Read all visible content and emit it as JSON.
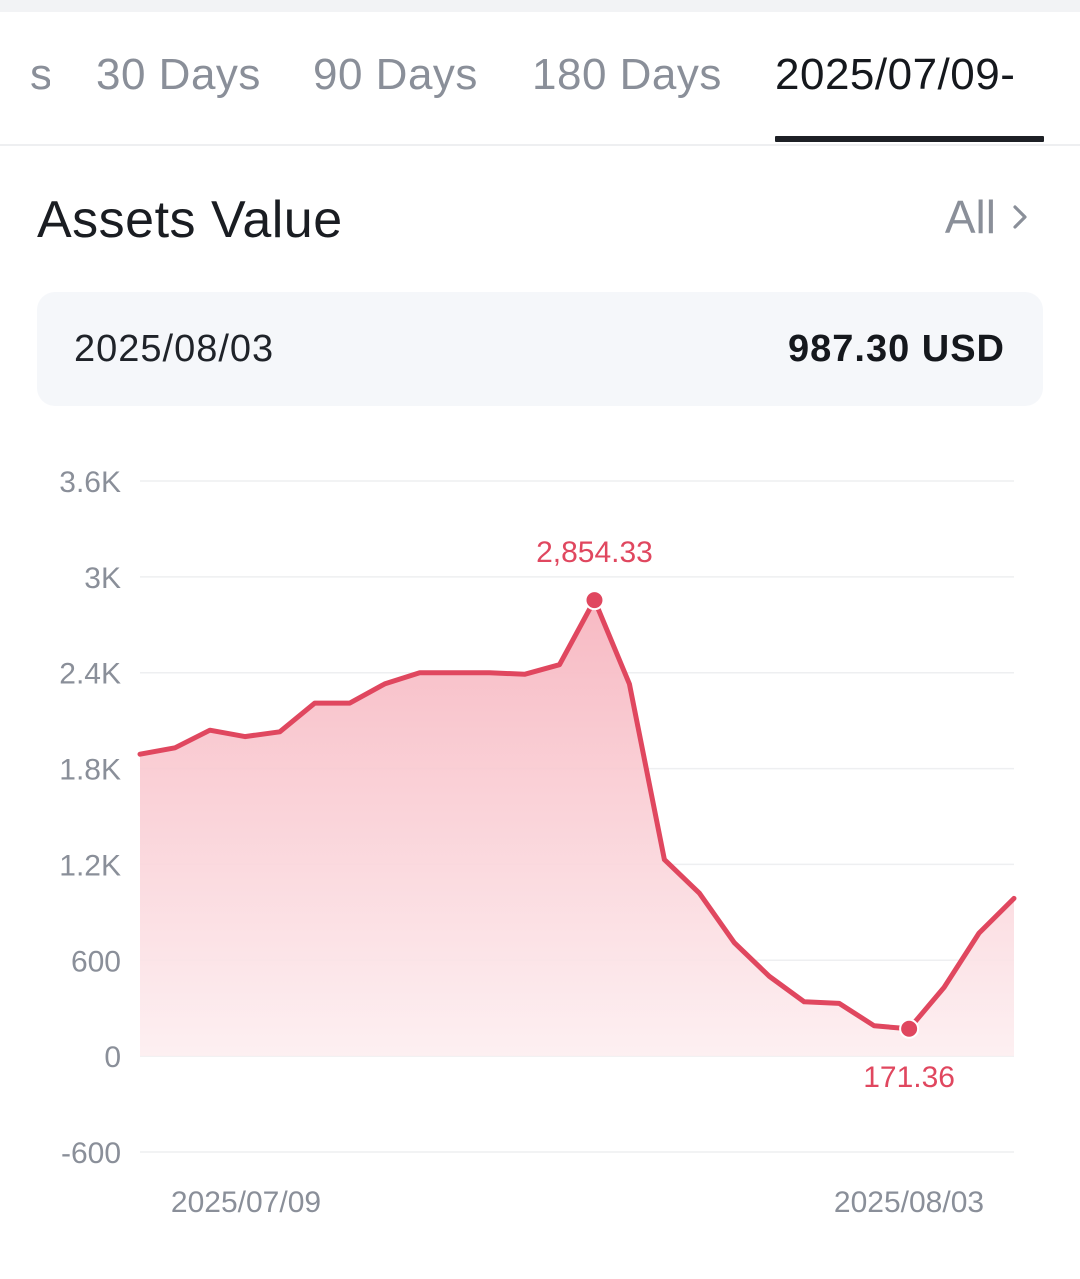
{
  "tabs": [
    {
      "label": "s",
      "active": false
    },
    {
      "label": "30 Days",
      "active": false
    },
    {
      "label": "90 Days",
      "active": false
    },
    {
      "label": "180 Days",
      "active": false
    },
    {
      "label": "2025/07/09-",
      "active": true
    }
  ],
  "section": {
    "title": "Assets Value",
    "all_label": "All"
  },
  "info": {
    "date": "2025/08/03",
    "value": "987.30 USD"
  },
  "colors": {
    "accent": "#e0475f",
    "fill_top": "#f7b6c0",
    "fill_bottom": "#fdeef0",
    "grid": "#eeeff1",
    "muted_text": "#8a8f99"
  },
  "chart_data": {
    "type": "area",
    "series": [
      {
        "values": [
          1890,
          1930,
          2040,
          2000,
          2030,
          2210,
          2210,
          2330,
          2400,
          2400,
          2400,
          2390,
          2450,
          2854.33,
          2330,
          1230,
          1020,
          710,
          500,
          340,
          330,
          190,
          171.36,
          430,
          770,
          987.3
        ]
      }
    ],
    "x_labels": [
      "2025/07/09",
      "2025/08/03"
    ],
    "y_ticks": [
      "3.6K",
      "3K",
      "2.4K",
      "1.8K",
      "1.2K",
      "600",
      "0",
      "-600"
    ],
    "ylim": [
      -600,
      3600
    ],
    "annotations": [
      {
        "label": "2,854.33",
        "index": 13,
        "value": 2854.33,
        "position": "above"
      },
      {
        "label": "171.36",
        "index": 22,
        "value": 171.36,
        "position": "below"
      }
    ],
    "grid": true,
    "xlabel": "",
    "ylabel": ""
  }
}
